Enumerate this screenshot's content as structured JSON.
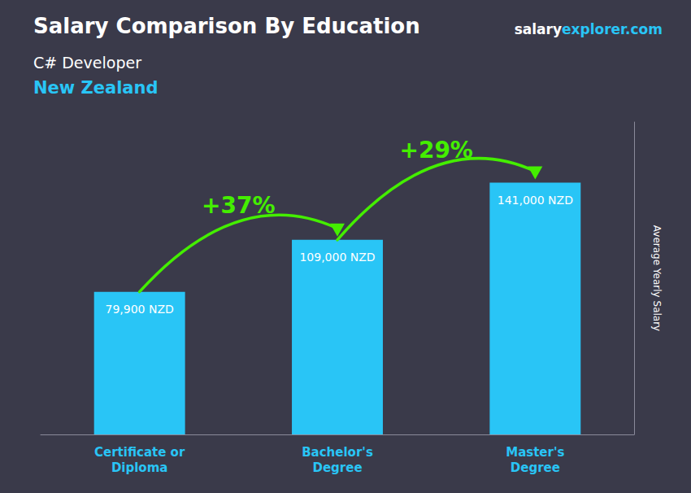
{
  "chart_data": {
    "type": "bar",
    "title": "Salary Comparison By Education",
    "subtitle": "C# Developer",
    "annotations": [
      {
        "text": "New Zealand",
        "color": "#29c5f6"
      },
      {
        "text": "salary",
        "color": "#ffffff"
      },
      {
        "text": "explorer.com",
        "color": "#29c5f6"
      },
      {
        "text": "+37%",
        "color": "#44ee00"
      },
      {
        "text": "+29%",
        "color": "#44ee00"
      }
    ],
    "ylabel": "Average Yearly Salary",
    "categories": [
      "Certificate or\nDiploma",
      "Bachelor's\nDegree",
      "Master's\nDegree"
    ],
    "values": [
      79900,
      109000,
      141000
    ],
    "value_labels": [
      "79,900 NZD",
      "109,000 NZD",
      "141,000 NZD"
    ],
    "data_labels": true,
    "color": "#29c5f6",
    "ylim": [
      0,
      175000
    ],
    "tick_labels": false,
    "grid": false
  }
}
